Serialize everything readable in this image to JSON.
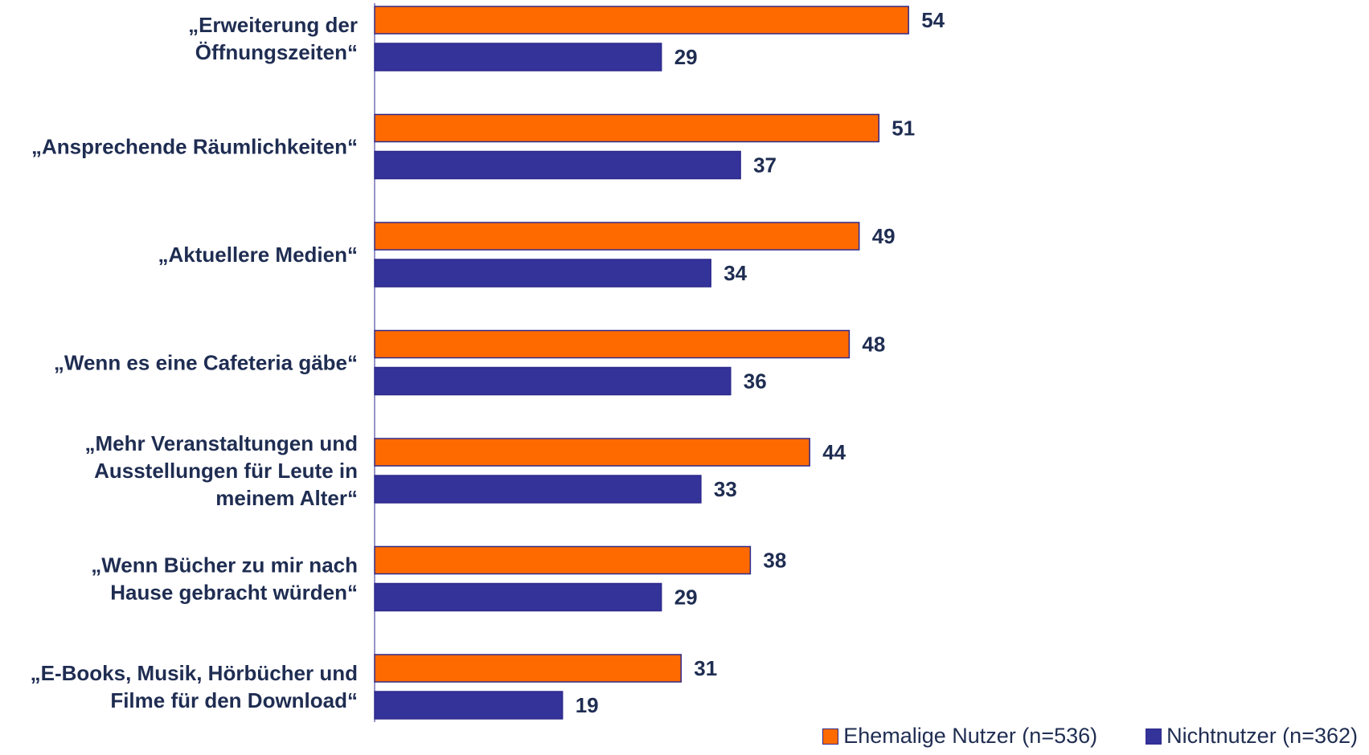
{
  "chart_data": {
    "type": "bar",
    "orientation": "horizontal",
    "categories": [
      [
        "„Erweiterung der",
        "Öffnungszeiten“"
      ],
      [
        "„Ansprechende Räumlichkeiten“"
      ],
      [
        "„Aktuellere Medien“"
      ],
      [
        "„Wenn es eine Cafeteria gäbe“"
      ],
      [
        "„Mehr Veranstaltungen und",
        "Ausstellungen für Leute in",
        "meinem Alter“"
      ],
      [
        "„Wenn Bücher zu mir nach",
        "Hause gebracht würden“"
      ],
      [
        "„E-Books, Musik, Hörbücher und",
        "Filme für den Download“"
      ]
    ],
    "series": [
      {
        "name": "Ehemalige Nutzer (n=536)",
        "color": "#ff6a00",
        "values": [
          54,
          51,
          49,
          48,
          44,
          38,
          31
        ]
      },
      {
        "name": "Nichtnutzer (n=362)",
        "color": "#34339a",
        "values": [
          29,
          37,
          34,
          36,
          33,
          29,
          19
        ]
      }
    ],
    "xlim": [
      0,
      100
    ],
    "grid": false,
    "legend_position": "bottom-right"
  }
}
